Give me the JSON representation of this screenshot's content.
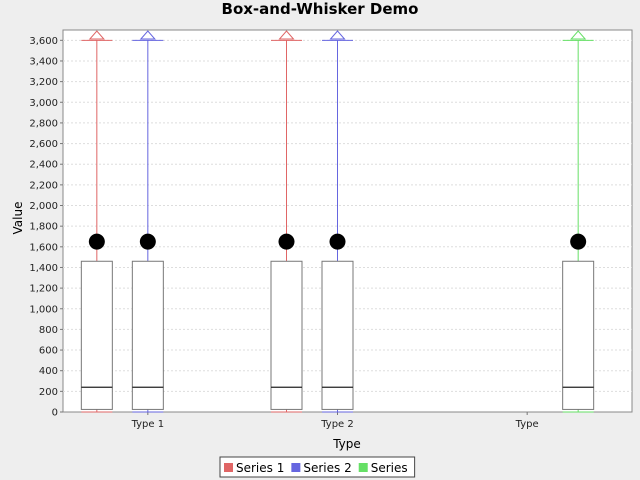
{
  "chart_data": {
    "type": "boxplot",
    "title": "Box-and-Whisker Demo",
    "xlabel": "Type",
    "ylabel": "Value",
    "ylim": [
      0,
      3700
    ],
    "y_ticks": [
      0,
      200,
      400,
      600,
      800,
      1000,
      1200,
      1400,
      1600,
      1800,
      2000,
      2200,
      2400,
      2600,
      2800,
      3000,
      3200,
      3400,
      3600
    ],
    "y_tick_labels": [
      "0",
      "200",
      "400",
      "600",
      "800",
      "1,000",
      "1,200",
      "1,400",
      "1,600",
      "1,800",
      "2,000",
      "2,200",
      "2,400",
      "2,600",
      "2,800",
      "3,000",
      "3,200",
      "3,400",
      "3,600"
    ],
    "grid": true,
    "legend_position": "bottom",
    "categories": [
      "Type 1",
      "Type 2",
      "Type"
    ],
    "series": [
      {
        "name": "Series 1",
        "color": "#e06666",
        "boxes": [
          {
            "category": "Type 1",
            "min": 0,
            "q1": 25,
            "median": 240,
            "q3": 1460,
            "max": 3600,
            "mean": 1650
          },
          {
            "category": "Type 2",
            "min": 0,
            "q1": 25,
            "median": 240,
            "q3": 1460,
            "max": 3600,
            "mean": 1650
          }
        ]
      },
      {
        "name": "Series 2",
        "color": "#6666e0",
        "boxes": [
          {
            "category": "Type 1",
            "min": 0,
            "q1": 25,
            "median": 240,
            "q3": 1460,
            "max": 3600,
            "mean": 1650
          },
          {
            "category": "Type 2",
            "min": 0,
            "q1": 25,
            "median": 240,
            "q3": 1460,
            "max": 3600,
            "mean": 1650
          }
        ]
      },
      {
        "name": "Series",
        "color": "#66e066",
        "boxes": [
          {
            "category": "Type",
            "min": 0,
            "q1": 25,
            "median": 240,
            "q3": 1460,
            "max": 3600,
            "mean": 1650
          }
        ]
      }
    ]
  }
}
